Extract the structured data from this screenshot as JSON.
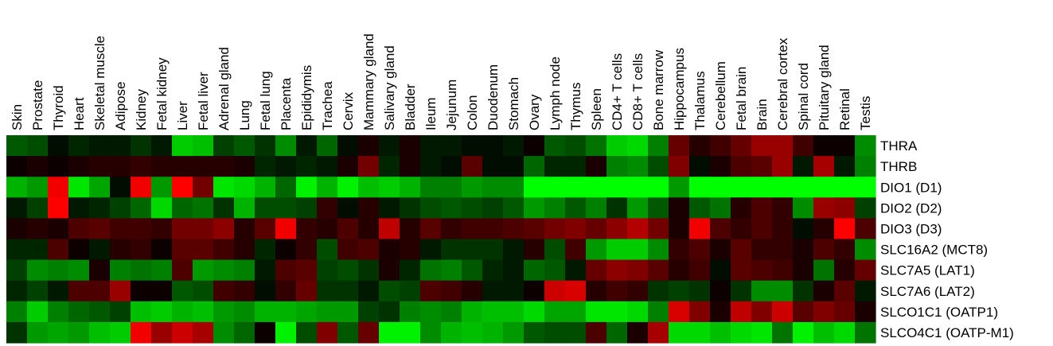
{
  "chart_data": {
    "type": "heatmap",
    "title": "",
    "xlabel": "",
    "ylabel": "",
    "color_scale": {
      "low": "#00ff00",
      "mid": "#000000",
      "high": "#ff0000",
      "range": [
        -1,
        1
      ]
    },
    "columns": [
      "Skin",
      "Prostate",
      "Thyroid",
      "Heart",
      "Skeletal muscle",
      "Adipose",
      "Kidney",
      "Fetal kidney",
      "Liver",
      "Fetal liver",
      "Adrenal gland",
      "Lung",
      "Fetal lung",
      "Placenta",
      "Epididymis",
      "Trachea",
      "Cervix",
      "Mammary gland",
      "Salivary gland",
      "Bladder",
      "Ileum",
      "Jejunum",
      "Colon",
      "Duodenum",
      "Stomach",
      "Ovary",
      "Lymph node",
      "Thymus",
      "Spleen",
      "CD4+ T cells",
      "CD8+ T cells",
      "Bone marrow",
      "Hippocampus",
      "Thalamus",
      "Cerebellum",
      "Fetal brain",
      "Brain",
      "Cerebral cortex",
      "Spinal cord",
      "Pituitary gland",
      "Retinal",
      "Testis"
    ],
    "rows": [
      "THRA",
      "THRB",
      "DIO1 (D1)",
      "DIO2 (D2)",
      "DIO3 (D3)",
      "SLC16A2 (MCT8)",
      "SLC7A5 (LAT1)",
      "SLC7A6 (LAT2)",
      "SLCO1C1 (OATP1)",
      "SLCO4C1 (OATP-M1)"
    ],
    "values": [
      [
        -0.35,
        -0.3,
        -0.05,
        -0.15,
        -0.1,
        -0.1,
        -0.2,
        -0.1,
        -0.8,
        -0.75,
        -0.25,
        -0.35,
        -0.2,
        -0.55,
        -0.1,
        -0.4,
        -0.05,
        0.1,
        -0.1,
        0.1,
        -0.1,
        -0.1,
        -0.05,
        -0.05,
        -0.1,
        0.05,
        -0.35,
        -0.3,
        -0.45,
        -0.8,
        -0.85,
        -0.5,
        0.4,
        0.15,
        0.25,
        0.4,
        0.6,
        0.6,
        0.25,
        0.05,
        0.05,
        -0.55
      ],
      [
        0.05,
        0.1,
        0.05,
        0.1,
        0.15,
        0.15,
        0.2,
        0.15,
        0.15,
        0.15,
        0.15,
        0.1,
        -0.15,
        -0.1,
        -0.15,
        -0.1,
        0.1,
        0.45,
        -0.15,
        0.1,
        -0.1,
        -0.05,
        0.35,
        -0.05,
        -0.05,
        -0.4,
        -0.15,
        -0.15,
        0.1,
        -0.5,
        -0.55,
        -0.3,
        0.5,
        -0.05,
        0.1,
        0.3,
        0.35,
        0.6,
        -0.1,
        0.65,
        -0.1,
        -0.5
      ],
      [
        -0.7,
        -0.6,
        0.95,
        -0.9,
        -0.65,
        -0.05,
        0.95,
        -0.6,
        1.0,
        0.45,
        -0.9,
        -0.85,
        -0.7,
        -0.4,
        -0.95,
        -0.7,
        -0.95,
        -0.75,
        -0.8,
        -0.7,
        -0.5,
        -0.5,
        -0.6,
        -0.55,
        -0.55,
        -1.0,
        -1.0,
        -1.0,
        -1.0,
        -1.0,
        -1.0,
        -1.0,
        -0.6,
        -1.0,
        -1.0,
        -1.0,
        -1.0,
        -1.0,
        -1.0,
        -1.0,
        -1.0,
        -1.0
      ],
      [
        -0.1,
        -0.25,
        1.0,
        -0.1,
        -0.15,
        -0.25,
        -0.4,
        -0.85,
        -0.4,
        -0.45,
        -0.2,
        -0.7,
        -0.3,
        -0.3,
        -0.25,
        0.2,
        -0.05,
        0.15,
        -0.1,
        -0.2,
        -0.3,
        -0.35,
        -0.3,
        -0.25,
        -0.35,
        -0.6,
        -0.5,
        -0.35,
        -0.5,
        -0.2,
        -0.6,
        -0.35,
        0.1,
        -0.35,
        -0.45,
        0.15,
        0.3,
        0.2,
        -0.55,
        0.6,
        0.55,
        -0.25
      ],
      [
        0.1,
        0.15,
        0.1,
        0.3,
        0.35,
        0.25,
        0.25,
        0.2,
        0.45,
        0.45,
        0.55,
        0.15,
        0.35,
        0.95,
        0.2,
        0.15,
        0.3,
        0.15,
        0.75,
        0.15,
        0.35,
        0.2,
        0.25,
        0.25,
        0.3,
        0.35,
        0.45,
        0.5,
        0.4,
        0.55,
        0.7,
        0.45,
        0.1,
        0.95,
        0.3,
        0.2,
        0.3,
        0.2,
        -0.05,
        0.15,
        1.0,
        0.3
      ],
      [
        -0.15,
        -0.15,
        0.3,
        0.05,
        -0.1,
        0.15,
        0.2,
        0.05,
        0.35,
        0.35,
        0.25,
        0.15,
        -0.15,
        0.05,
        0.2,
        -0.3,
        0.25,
        0.3,
        0.1,
        0.15,
        -0.1,
        -0.2,
        -0.2,
        -0.2,
        -0.1,
        0.15,
        -0.3,
        0.25,
        -0.6,
        -0.8,
        -0.8,
        -0.55,
        0.2,
        0.3,
        0.1,
        0.35,
        0.2,
        0.2,
        0.1,
        0.3,
        0.2,
        -0.55
      ],
      [
        -0.25,
        -0.55,
        -0.5,
        -0.55,
        0.1,
        -0.5,
        -0.45,
        -0.5,
        0.3,
        -0.6,
        -0.55,
        -0.5,
        -0.1,
        0.3,
        0.35,
        -0.25,
        -0.3,
        -0.2,
        0.1,
        -0.15,
        -0.45,
        -0.5,
        -0.35,
        -0.15,
        -0.1,
        -0.4,
        -0.35,
        -0.1,
        0.4,
        0.55,
        0.5,
        0.35,
        0.15,
        0.25,
        -0.05,
        0.35,
        0.3,
        0.25,
        0.1,
        -0.45,
        0.15,
        0.4
      ],
      [
        -0.15,
        -0.25,
        -0.1,
        0.3,
        0.3,
        0.6,
        0.05,
        0.05,
        -0.35,
        -0.3,
        0.25,
        0.2,
        -0.05,
        0.2,
        0.4,
        -0.2,
        -0.2,
        -0.1,
        -0.3,
        -0.25,
        0.3,
        0.25,
        0.15,
        -0.1,
        -0.1,
        0.05,
        0.8,
        0.85,
        0.15,
        0.25,
        0.2,
        -0.2,
        -0.25,
        -0.2,
        0.05,
        -0.2,
        -0.55,
        -0.55,
        -0.2,
        0.1,
        0.35,
        -0.1
      ],
      [
        -0.5,
        -0.8,
        -0.5,
        -0.4,
        -0.35,
        -0.25,
        -0.75,
        -0.8,
        -0.7,
        -0.75,
        -0.6,
        -0.55,
        -0.7,
        -0.7,
        -0.65,
        -0.6,
        -0.6,
        -0.25,
        -0.2,
        -0.5,
        -0.55,
        -0.5,
        -0.7,
        -0.75,
        -0.75,
        -0.85,
        -0.65,
        -0.65,
        -0.9,
        -0.9,
        -0.85,
        -0.5,
        0.85,
        0.5,
        0.1,
        0.75,
        0.5,
        0.8,
        0.35,
        0.5,
        0.4,
        0.1
      ],
      [
        -0.2,
        -0.6,
        -0.65,
        -0.6,
        -0.75,
        -0.8,
        0.95,
        0.6,
        0.8,
        0.65,
        -0.55,
        -0.4,
        0.05,
        -0.95,
        -0.3,
        0.5,
        -0.35,
        0.4,
        -0.95,
        -0.95,
        -0.55,
        -0.7,
        -0.75,
        -0.7,
        -0.6,
        -0.35,
        -0.3,
        -0.3,
        0.3,
        -0.4,
        0.1,
        0.65,
        -0.85,
        -0.85,
        -0.75,
        -0.85,
        -0.9,
        -0.45,
        -0.95,
        -0.75,
        -0.85,
        -0.45
      ]
    ]
  }
}
